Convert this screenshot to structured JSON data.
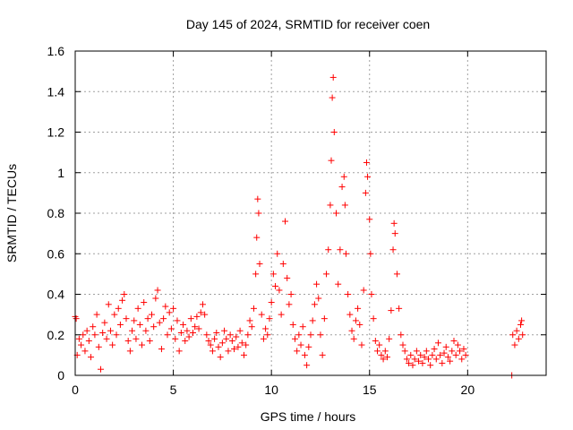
{
  "chart_data": {
    "type": "scatter",
    "title": "Day 145 of 2024, SRMTID for receiver coen",
    "xlabel": "GPS time / hours",
    "ylabel": "SRMTID / TECUs",
    "xlim": [
      0,
      24
    ],
    "ylim": [
      0,
      1.6
    ],
    "xticks": [
      0,
      5,
      10,
      15,
      20
    ],
    "yticks": [
      0,
      0.2,
      0.4,
      0.6,
      0.8,
      1,
      1.2,
      1.4,
      1.6
    ],
    "xtick_labels": [
      "0",
      "5",
      "10",
      "15",
      "20"
    ],
    "ytick_labels": [
      "0",
      "0.2",
      "0.4",
      "0.6",
      "0.8",
      "1",
      "1.2",
      "1.4",
      "1.6"
    ],
    "grid": true,
    "legend": "none",
    "marker": "+",
    "series_color": "#ff0000",
    "points_estimated_sample": [
      [
        0.0,
        0.29
      ],
      [
        0.05,
        0.28
      ],
      [
        0.1,
        0.1
      ],
      [
        0.2,
        0.18
      ],
      [
        0.3,
        0.15
      ],
      [
        0.4,
        0.2
      ],
      [
        0.5,
        0.12
      ],
      [
        0.6,
        0.22
      ],
      [
        0.7,
        0.17
      ],
      [
        0.8,
        0.09
      ],
      [
        0.9,
        0.24
      ],
      [
        1.0,
        0.2
      ],
      [
        1.1,
        0.3
      ],
      [
        1.2,
        0.14
      ],
      [
        1.3,
        0.03
      ],
      [
        1.4,
        0.21
      ],
      [
        1.5,
        0.26
      ],
      [
        1.6,
        0.18
      ],
      [
        1.7,
        0.35
      ],
      [
        1.8,
        0.22
      ],
      [
        1.9,
        0.15
      ],
      [
        2.0,
        0.3
      ],
      [
        2.1,
        0.2
      ],
      [
        2.2,
        0.33
      ],
      [
        2.3,
        0.25
      ],
      [
        2.4,
        0.37
      ],
      [
        2.5,
        0.4
      ],
      [
        2.6,
        0.28
      ],
      [
        2.7,
        0.17
      ],
      [
        2.8,
        0.12
      ],
      [
        2.9,
        0.22
      ],
      [
        3.0,
        0.27
      ],
      [
        3.1,
        0.18
      ],
      [
        3.2,
        0.33
      ],
      [
        3.3,
        0.25
      ],
      [
        3.4,
        0.15
      ],
      [
        3.5,
        0.36
      ],
      [
        3.6,
        0.22
      ],
      [
        3.7,
        0.28
      ],
      [
        3.8,
        0.17
      ],
      [
        3.9,
        0.3
      ],
      [
        4.0,
        0.24
      ],
      [
        4.1,
        0.38
      ],
      [
        4.2,
        0.42
      ],
      [
        4.3,
        0.26
      ],
      [
        4.4,
        0.13
      ],
      [
        4.5,
        0.28
      ],
      [
        4.6,
        0.34
      ],
      [
        4.7,
        0.2
      ],
      [
        4.8,
        0.31
      ],
      [
        4.9,
        0.23
      ],
      [
        5.0,
        0.33
      ],
      [
        5.1,
        0.18
      ],
      [
        5.2,
        0.27
      ],
      [
        5.3,
        0.12
      ],
      [
        5.4,
        0.21
      ],
      [
        5.5,
        0.25
      ],
      [
        5.6,
        0.17
      ],
      [
        5.7,
        0.22
      ],
      [
        5.8,
        0.19
      ],
      [
        5.9,
        0.28
      ],
      [
        6.0,
        0.21
      ],
      [
        6.1,
        0.24
      ],
      [
        6.2,
        0.29
      ],
      [
        6.3,
        0.23
      ],
      [
        6.4,
        0.31
      ],
      [
        6.5,
        0.35
      ],
      [
        6.6,
        0.3
      ],
      [
        6.7,
        0.2
      ],
      [
        6.8,
        0.17
      ],
      [
        6.9,
        0.15
      ],
      [
        7.0,
        0.12
      ],
      [
        7.1,
        0.18
      ],
      [
        7.2,
        0.21
      ],
      [
        7.3,
        0.14
      ],
      [
        7.4,
        0.09
      ],
      [
        7.5,
        0.16
      ],
      [
        7.6,
        0.22
      ],
      [
        7.7,
        0.18
      ],
      [
        7.8,
        0.12
      ],
      [
        7.9,
        0.2
      ],
      [
        8.0,
        0.17
      ],
      [
        8.1,
        0.13
      ],
      [
        8.2,
        0.19
      ],
      [
        8.3,
        0.14
      ],
      [
        8.4,
        0.22
      ],
      [
        8.5,
        0.16
      ],
      [
        8.6,
        0.1
      ],
      [
        8.7,
        0.15
      ],
      [
        8.8,
        0.2
      ],
      [
        8.9,
        0.27
      ],
      [
        9.0,
        0.24
      ],
      [
        9.1,
        0.33
      ],
      [
        9.2,
        0.5
      ],
      [
        9.25,
        0.68
      ],
      [
        9.3,
        0.87
      ],
      [
        9.35,
        0.8
      ],
      [
        9.4,
        0.55
      ],
      [
        9.5,
        0.3
      ],
      [
        9.6,
        0.18
      ],
      [
        9.7,
        0.23
      ],
      [
        9.8,
        0.2
      ],
      [
        9.9,
        0.28
      ],
      [
        10.0,
        0.36
      ],
      [
        10.1,
        0.5
      ],
      [
        10.2,
        0.44
      ],
      [
        10.3,
        0.6
      ],
      [
        10.4,
        0.42
      ],
      [
        10.5,
        0.3
      ],
      [
        10.6,
        0.55
      ],
      [
        10.7,
        0.76
      ],
      [
        10.8,
        0.48
      ],
      [
        10.9,
        0.35
      ],
      [
        11.0,
        0.4
      ],
      [
        11.1,
        0.25
      ],
      [
        11.2,
        0.18
      ],
      [
        11.3,
        0.12
      ],
      [
        11.4,
        0.2
      ],
      [
        11.5,
        0.15
      ],
      [
        11.6,
        0.24
      ],
      [
        11.7,
        0.1
      ],
      [
        11.8,
        0.05
      ],
      [
        11.9,
        0.14
      ],
      [
        12.0,
        0.2
      ],
      [
        12.1,
        0.27
      ],
      [
        12.2,
        0.35
      ],
      [
        12.3,
        0.45
      ],
      [
        12.4,
        0.38
      ],
      [
        12.5,
        0.2
      ],
      [
        12.6,
        0.1
      ],
      [
        12.7,
        0.28
      ],
      [
        12.8,
        0.5
      ],
      [
        12.9,
        0.62
      ],
      [
        13.0,
        0.84
      ],
      [
        13.05,
        1.06
      ],
      [
        13.1,
        1.37
      ],
      [
        13.15,
        1.47
      ],
      [
        13.2,
        1.2
      ],
      [
        13.3,
        0.8
      ],
      [
        13.4,
        0.45
      ],
      [
        13.5,
        0.62
      ],
      [
        13.6,
        0.93
      ],
      [
        13.7,
        0.98
      ],
      [
        13.75,
        0.84
      ],
      [
        13.8,
        0.6
      ],
      [
        13.9,
        0.4
      ],
      [
        14.0,
        0.3
      ],
      [
        14.1,
        0.22
      ],
      [
        14.2,
        0.18
      ],
      [
        14.3,
        0.27
      ],
      [
        14.4,
        0.33
      ],
      [
        14.5,
        0.25
      ],
      [
        14.6,
        0.15
      ],
      [
        14.7,
        0.42
      ],
      [
        14.8,
        0.9
      ],
      [
        14.85,
        1.05
      ],
      [
        14.9,
        0.98
      ],
      [
        15.0,
        0.77
      ],
      [
        15.05,
        0.6
      ],
      [
        15.1,
        0.4
      ],
      [
        15.2,
        0.28
      ],
      [
        15.3,
        0.17
      ],
      [
        15.4,
        0.12
      ],
      [
        15.5,
        0.15
      ],
      [
        15.6,
        0.1
      ],
      [
        15.7,
        0.08
      ],
      [
        15.8,
        0.12
      ],
      [
        15.9,
        0.09
      ],
      [
        16.0,
        0.18
      ],
      [
        16.1,
        0.32
      ],
      [
        16.2,
        0.62
      ],
      [
        16.25,
        0.75
      ],
      [
        16.3,
        0.7
      ],
      [
        16.4,
        0.5
      ],
      [
        16.5,
        0.33
      ],
      [
        16.6,
        0.2
      ],
      [
        16.7,
        0.15
      ],
      [
        16.8,
        0.12
      ],
      [
        16.9,
        0.08
      ],
      [
        17.0,
        0.06
      ],
      [
        17.1,
        0.1
      ],
      [
        17.2,
        0.05
      ],
      [
        17.3,
        0.08
      ],
      [
        17.4,
        0.12
      ],
      [
        17.5,
        0.07
      ],
      [
        17.6,
        0.1
      ],
      [
        17.7,
        0.06
      ],
      [
        17.8,
        0.09
      ],
      [
        17.9,
        0.12
      ],
      [
        18.0,
        0.08
      ],
      [
        18.1,
        0.05
      ],
      [
        18.2,
        0.1
      ],
      [
        18.3,
        0.13
      ],
      [
        18.4,
        0.08
      ],
      [
        18.5,
        0.16
      ],
      [
        18.6,
        0.1
      ],
      [
        18.7,
        0.06
      ],
      [
        18.8,
        0.11
      ],
      [
        18.9,
        0.14
      ],
      [
        19.0,
        0.09
      ],
      [
        19.1,
        0.07
      ],
      [
        19.2,
        0.12
      ],
      [
        19.3,
        0.17
      ],
      [
        19.4,
        0.1
      ],
      [
        19.5,
        0.15
      ],
      [
        19.6,
        0.12
      ],
      [
        19.7,
        0.08
      ],
      [
        19.8,
        0.13
      ],
      [
        19.9,
        0.1
      ],
      [
        22.25,
        0.0
      ],
      [
        22.3,
        0.2
      ],
      [
        22.4,
        0.15
      ],
      [
        22.5,
        0.22
      ],
      [
        22.6,
        0.18
      ],
      [
        22.7,
        0.25
      ],
      [
        22.75,
        0.27
      ],
      [
        22.8,
        0.2
      ]
    ]
  }
}
